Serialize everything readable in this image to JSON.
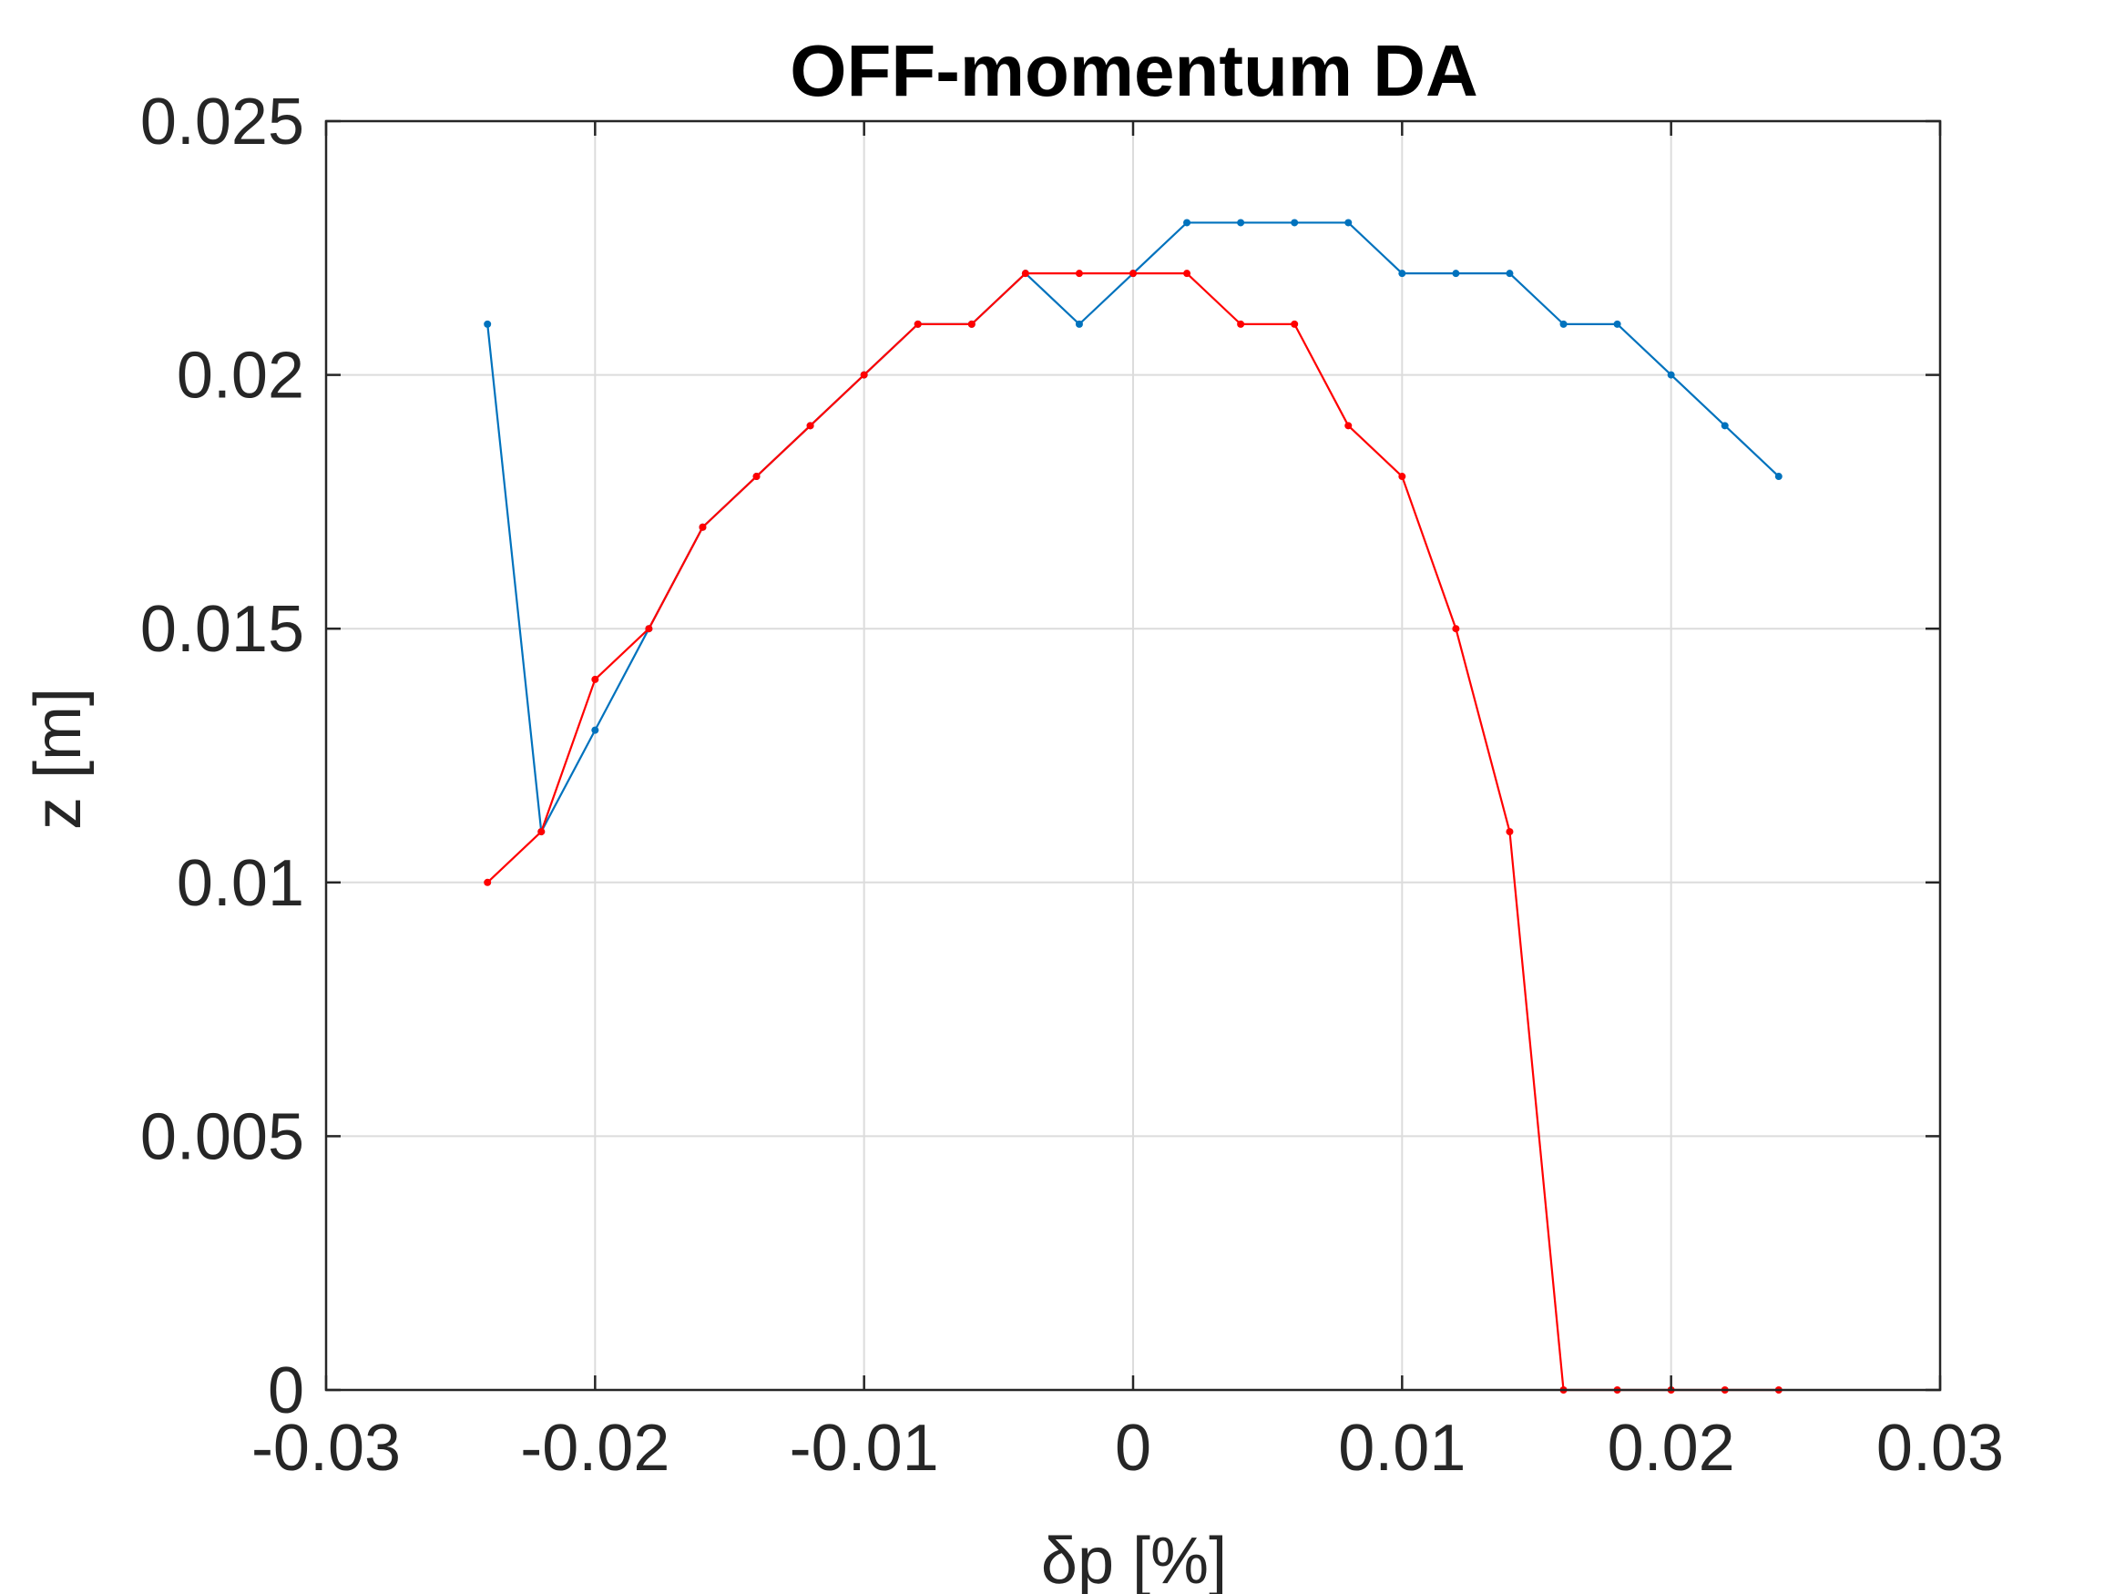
{
  "chart_data": {
    "type": "line",
    "title": "OFF-momentum DA",
    "xlabel": "δp [%]",
    "ylabel": "z [m]",
    "xlim": [
      -0.03,
      0.03
    ],
    "ylim": [
      0,
      0.025
    ],
    "x_ticks": [
      -0.03,
      -0.02,
      -0.01,
      0,
      0.01,
      0.02,
      0.03
    ],
    "x_tick_labels": [
      "-0.03",
      "-0.02",
      "-0.01",
      "0",
      "0.01",
      "0.02",
      "0.03"
    ],
    "y_ticks": [
      0,
      0.005,
      0.01,
      0.015,
      0.02,
      0.025
    ],
    "y_tick_labels": [
      "0",
      "0.005",
      "0.01",
      "0.015",
      "0.02",
      "0.025"
    ],
    "grid": true,
    "legend": "none",
    "x": [
      -0.024,
      -0.022,
      -0.02,
      -0.018,
      -0.016,
      -0.014,
      -0.012,
      -0.01,
      -0.008,
      -0.006,
      -0.004,
      -0.002,
      0.0,
      0.002,
      0.004,
      0.006,
      0.008,
      0.01,
      0.012,
      0.014,
      0.016,
      0.018,
      0.02,
      0.022,
      0.024
    ],
    "series": [
      {
        "color": "#0072BD",
        "values": [
          0.021,
          0.011,
          0.013,
          0.015,
          0.017,
          0.018,
          0.019,
          0.02,
          0.021,
          0.021,
          0.022,
          0.021,
          0.022,
          0.023,
          0.023,
          0.023,
          0.023,
          0.022,
          0.022,
          0.022,
          0.021,
          0.021,
          0.02,
          0.019,
          0.018
        ]
      },
      {
        "color": "#FF0000",
        "values": [
          0.01,
          0.011,
          0.014,
          0.015,
          0.017,
          0.018,
          0.019,
          0.02,
          0.021,
          0.021,
          0.022,
          0.022,
          0.022,
          0.022,
          0.021,
          0.021,
          0.019,
          0.018,
          0.015,
          0.011,
          0.0,
          0.0,
          0.0,
          0.0,
          0.0
        ]
      }
    ]
  }
}
